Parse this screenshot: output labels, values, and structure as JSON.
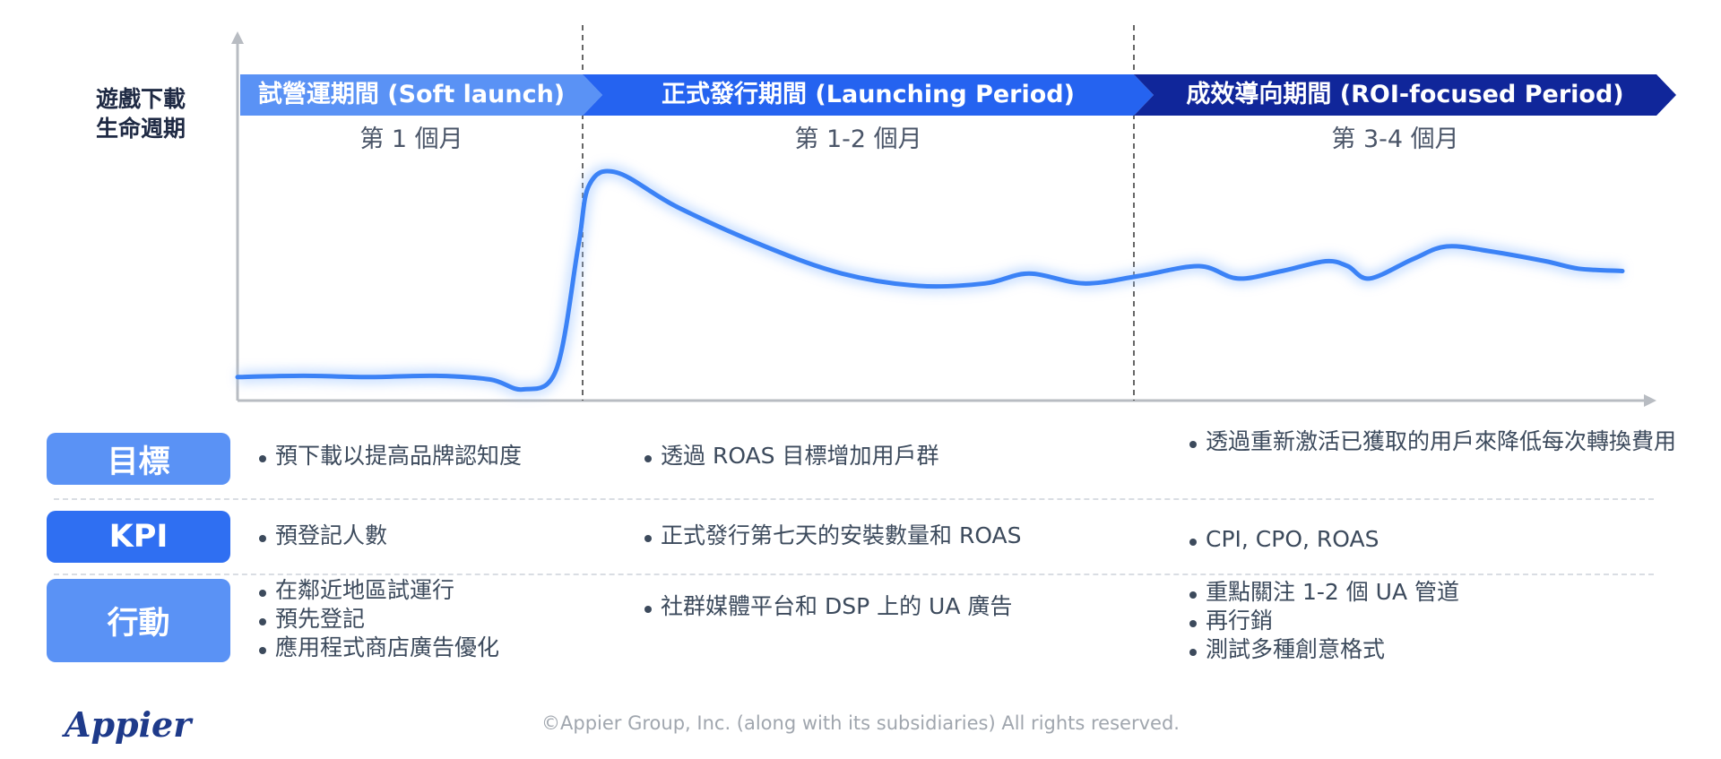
{
  "lifecycle_label": "遊戲下載\n生命週期",
  "phases": [
    {
      "title": "試營運期間 (Soft launch)",
      "subtitle": "第 1 個月",
      "color": "#5a92f5"
    },
    {
      "title": "正式發行期間 (Launching Period)",
      "subtitle": "第 1-2 個月",
      "color": "#2563f0"
    },
    {
      "title": "成效導向期間 (ROI-focused Period)",
      "subtitle": "第 3-4 個月",
      "color": "#10269a"
    }
  ],
  "chart_data": {
    "type": "line",
    "series": [
      {
        "values": [
          [
            0,
            0.07
          ],
          [
            0.06,
            0.075
          ],
          [
            0.12,
            0.07
          ],
          [
            0.18,
            0.075
          ],
          [
            0.23,
            0.06
          ],
          [
            0.26,
            0.02
          ],
          [
            0.29,
            0.1
          ],
          [
            0.31,
            0.6
          ],
          [
            0.32,
            0.85
          ],
          [
            0.345,
            0.9
          ],
          [
            0.4,
            0.76
          ],
          [
            0.48,
            0.6
          ],
          [
            0.55,
            0.49
          ],
          [
            0.62,
            0.44
          ],
          [
            0.68,
            0.45
          ],
          [
            0.72,
            0.49
          ],
          [
            0.77,
            0.45
          ],
          [
            0.82,
            0.48
          ],
          [
            0.875,
            0.52
          ],
          [
            0.91,
            0.47
          ],
          [
            0.95,
            0.5
          ],
          [
            0.99,
            0.54
          ],
          [
            1.01,
            0.52
          ],
          [
            1.03,
            0.47
          ],
          [
            1.07,
            0.55
          ],
          [
            1.1,
            0.6
          ],
          [
            1.14,
            0.58
          ],
          [
            1.19,
            0.54
          ],
          [
            1.22,
            0.51
          ],
          [
            1.26,
            0.5
          ]
        ],
        "color": "#3b82f6"
      }
    ],
    "xlim": [
      0,
      1.26
    ],
    "ylim": [
      0,
      1
    ],
    "phase_boundaries": [
      0.25,
      0.65
    ],
    "xlabel": "",
    "ylabel": ""
  },
  "rows": [
    {
      "label": "目標",
      "color": "#5a92f5",
      "cells": [
        [
          "預下載以提高品牌認知度"
        ],
        [
          "透過 ROAS 目標增加用戶群"
        ],
        [
          "透過重新激活已獲取的用戶來降低每次轉換費用"
        ]
      ]
    },
    {
      "label": "KPI",
      "color": "#2f6ff2",
      "cells": [
        [
          "預登記人數"
        ],
        [
          "正式發行第七天的安裝數量和 ROAS"
        ],
        [
          "CPI, CPO, ROAS"
        ]
      ]
    },
    {
      "label": "行動",
      "color": "#5a92f5",
      "cells": [
        [
          "在鄰近地區試運行",
          "預先登記",
          "應用程式商店廣告優化"
        ],
        [
          "社群媒體平台和 DSP 上的 UA 廣告"
        ],
        [
          "重點關注 1-2 個 UA 管道",
          "再行銷",
          "測試多種創意格式"
        ]
      ]
    }
  ],
  "logo_text": "Appier",
  "footer": "©Appier Group, Inc. (along with its subsidiaries) All rights reserved."
}
